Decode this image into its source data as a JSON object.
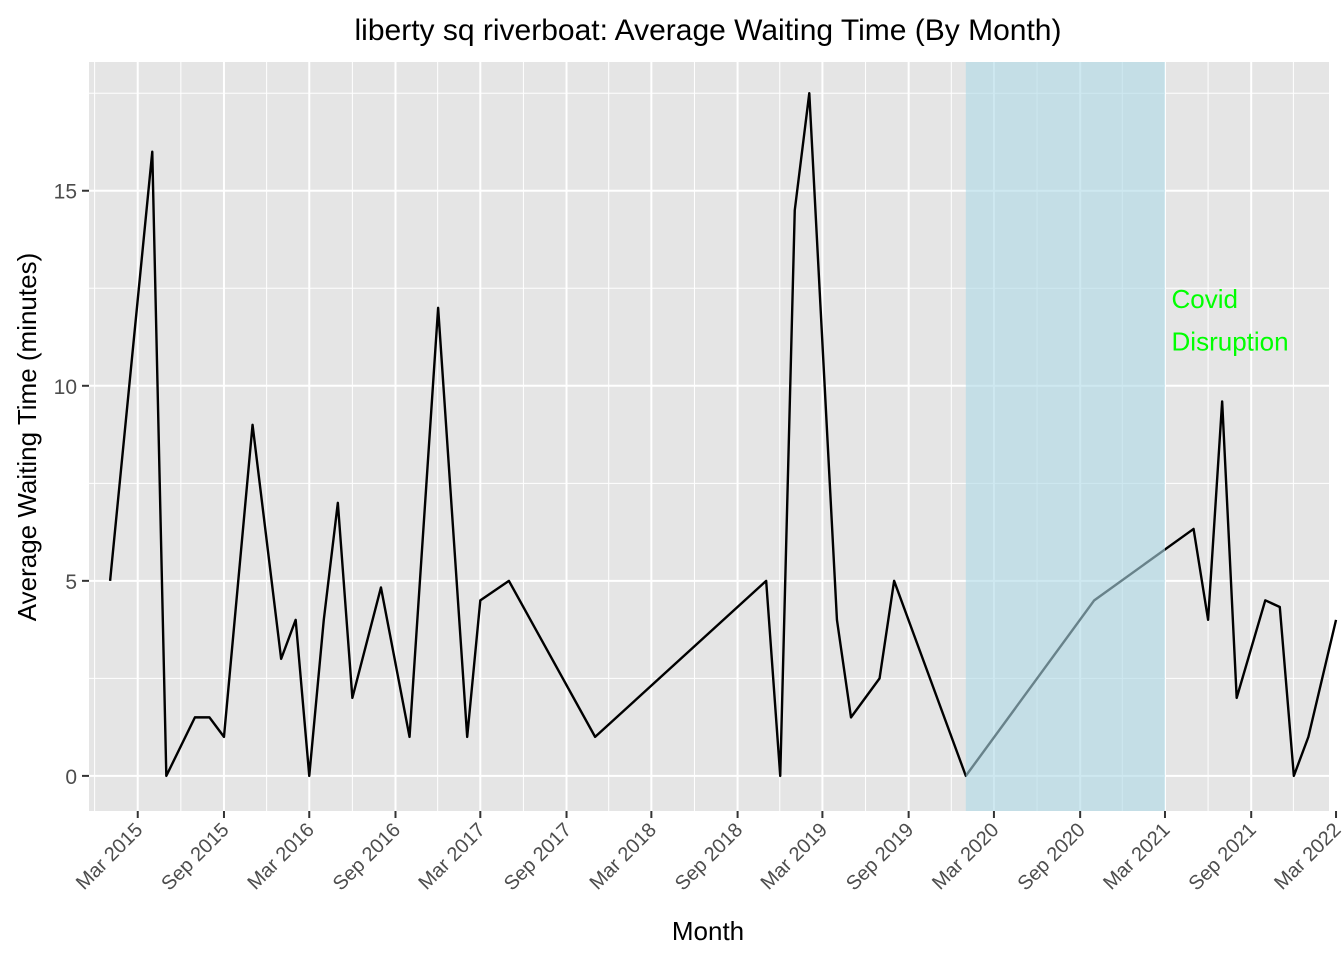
{
  "chart_data": {
    "type": "line",
    "title": "liberty sq riverboat: Average Waiting Time (By Month)",
    "xlabel": "Month",
    "ylabel": "Average Waiting Time (minutes)",
    "x_axis_type": "date",
    "xlim": [
      "2014-11-17",
      "2022-02-14"
    ],
    "ylim": [
      -0.9,
      18.3
    ],
    "x_ticks": [
      {
        "date": "2015-03-01",
        "label": "Mar 2015"
      },
      {
        "date": "2015-09-01",
        "label": "Sep 2015"
      },
      {
        "date": "2016-03-01",
        "label": "Mar 2016"
      },
      {
        "date": "2016-09-01",
        "label": "Sep 2016"
      },
      {
        "date": "2017-03-01",
        "label": "Mar 2017"
      },
      {
        "date": "2017-09-01",
        "label": "Sep 2017"
      },
      {
        "date": "2018-03-01",
        "label": "Mar 2018"
      },
      {
        "date": "2018-09-01",
        "label": "Sep 2018"
      },
      {
        "date": "2019-03-01",
        "label": "Mar 2019"
      },
      {
        "date": "2019-09-01",
        "label": "Sep 2019"
      },
      {
        "date": "2020-03-01",
        "label": "Mar 2020"
      },
      {
        "date": "2020-09-01",
        "label": "Sep 2020"
      },
      {
        "date": "2021-03-01",
        "label": "Mar 2021"
      },
      {
        "date": "2021-09-01",
        "label": "Sep 2021"
      },
      {
        "date": "2022-03-01",
        "label": "Mar 2022"
      }
    ],
    "y_ticks": [
      0,
      5,
      10,
      15
    ],
    "y_tick_labels": [
      "0",
      "5",
      "10",
      "15"
    ],
    "grid": true,
    "panel_background": "#e5e5e5",
    "series": [
      {
        "color": "#000000",
        "points": [
          [
            "2015-01-01",
            5
          ],
          [
            "2015-04-01",
            16
          ],
          [
            "2015-05-01",
            0
          ],
          [
            "2015-07-01",
            1.5
          ],
          [
            "2015-08-01",
            1.5
          ],
          [
            "2015-09-01",
            1
          ],
          [
            "2015-11-01",
            9
          ],
          [
            "2016-01-01",
            3
          ],
          [
            "2016-02-01",
            4
          ],
          [
            "2016-03-01",
            0
          ],
          [
            "2016-04-01",
            4
          ],
          [
            "2016-05-01",
            7
          ],
          [
            "2016-06-01",
            2
          ],
          [
            "2016-08-01",
            4.83
          ],
          [
            "2016-10-01",
            1
          ],
          [
            "2016-12-01",
            12
          ],
          [
            "2017-02-01",
            1
          ],
          [
            "2017-03-01",
            4.5
          ],
          [
            "2017-05-01",
            5
          ],
          [
            "2017-11-01",
            1
          ],
          [
            "2018-11-01",
            5
          ],
          [
            "2018-12-01",
            0
          ],
          [
            "2019-01-01",
            14.5
          ],
          [
            "2019-02-01",
            17.5
          ],
          [
            "2019-04-01",
            4
          ],
          [
            "2019-05-01",
            1.5
          ],
          [
            "2019-07-01",
            2.5
          ],
          [
            "2019-08-01",
            5
          ],
          [
            "2020-01-01",
            0
          ],
          [
            "2020-10-01",
            4.5
          ],
          [
            "2021-05-01",
            6.33
          ],
          [
            "2021-06-01",
            4
          ],
          [
            "2021-07-01",
            9.6
          ],
          [
            "2021-08-01",
            2
          ],
          [
            "2021-10-01",
            4.5
          ],
          [
            "2021-11-01",
            4.33
          ],
          [
            "2021-12-01",
            0
          ],
          [
            "2022-01-01",
            1
          ],
          [
            "2022-03-01",
            4
          ]
        ]
      }
    ],
    "shaded_region": {
      "x_start": "2020-01-01",
      "x_end": "2021-03-01",
      "fill": "#add8e6",
      "opacity": 0.6
    },
    "annotations": [
      {
        "text": "Covid",
        "x": "2021-03-15",
        "y": 12.0,
        "color": "#00ff00"
      },
      {
        "text": "Disruption",
        "x": "2021-03-15",
        "y": 10.9,
        "color": "#00ff00"
      }
    ]
  }
}
